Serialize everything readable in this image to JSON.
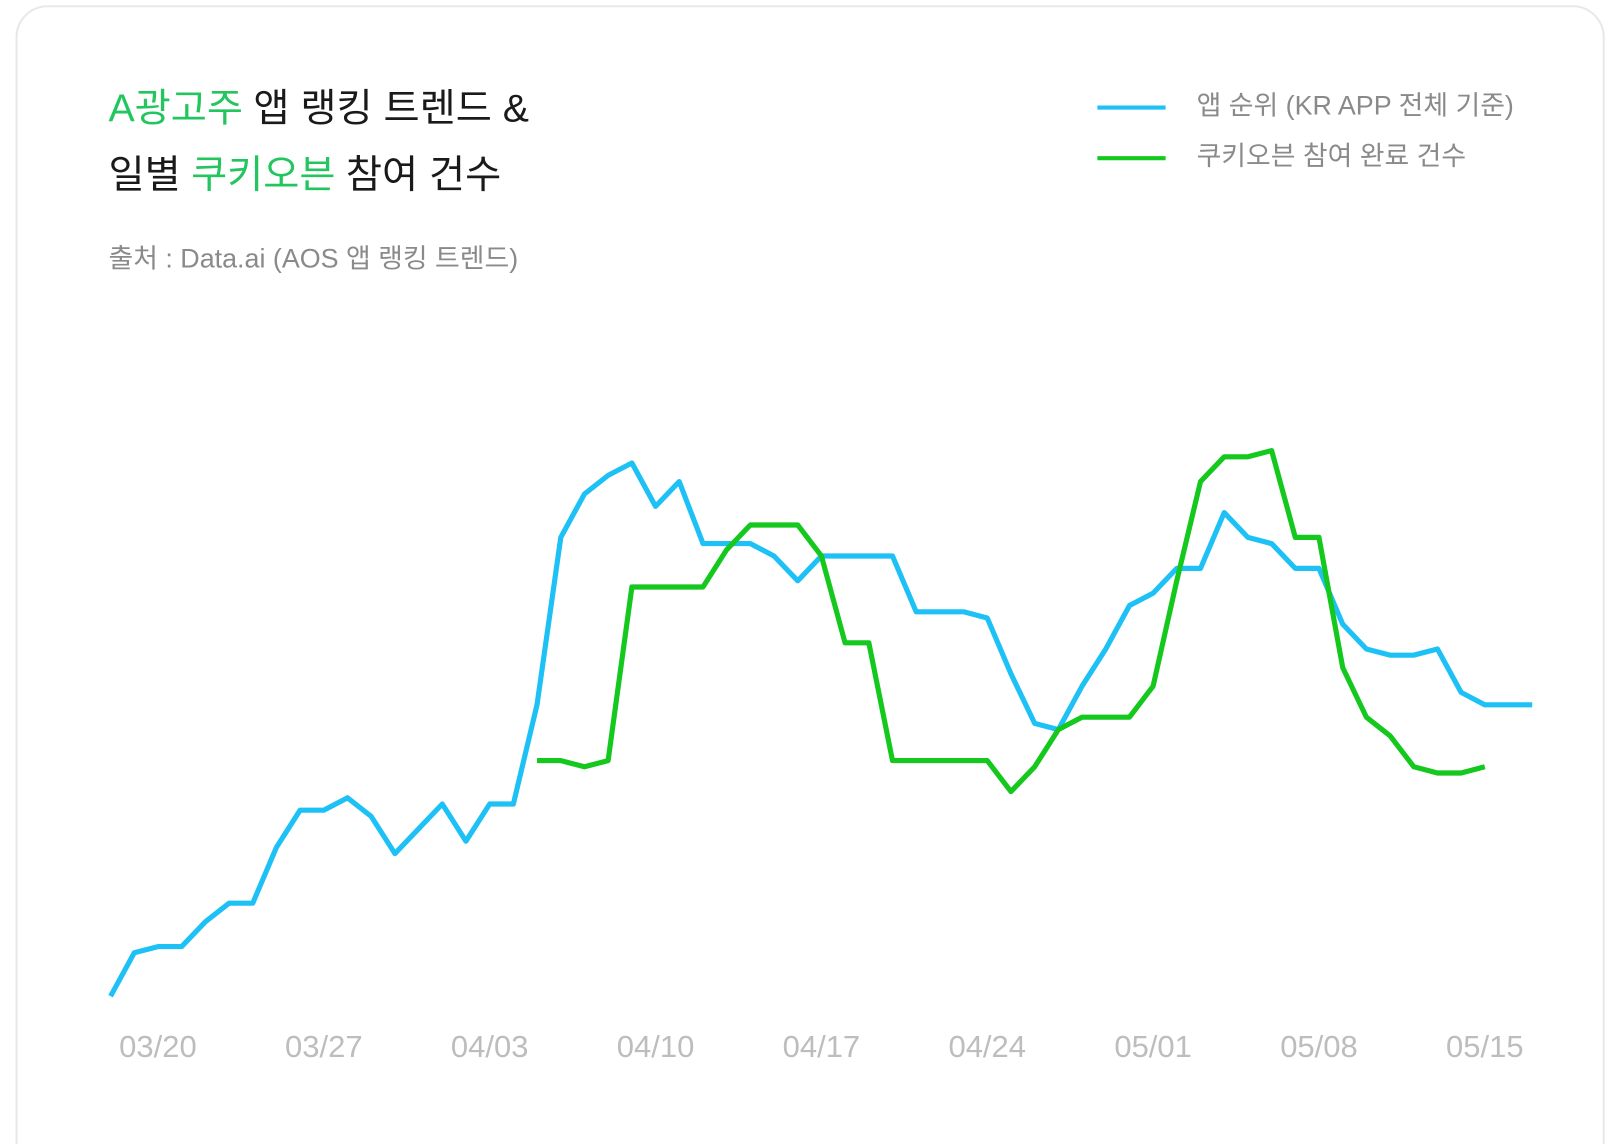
{
  "chart_data": {
    "type": "line",
    "title_lines": [
      [
        {
          "text": "A광고주",
          "highlight": true
        },
        {
          "text": "앱 랭킹 트렌드 &",
          "highlight": false
        }
      ],
      [
        {
          "text": "일별",
          "highlight": false
        },
        {
          "text": "쿠키오븐",
          "highlight": true
        },
        {
          "text": "참여 건수",
          "highlight": false
        }
      ]
    ],
    "highlight_color": "#22c55e",
    "subtitle": "출처 : Data.ai (AOS 앱 랭킹 트렌드)",
    "categories": [
      null,
      null,
      "03/20",
      null,
      null,
      null,
      null,
      null,
      null,
      "03/27",
      null,
      null,
      null,
      null,
      null,
      null,
      "04/03",
      null,
      null,
      null,
      null,
      null,
      null,
      "04/10",
      null,
      null,
      null,
      null,
      null,
      null,
      "04/17",
      null,
      null,
      null,
      null,
      null,
      null,
      "04/24",
      null,
      null,
      null,
      null,
      null,
      null,
      "05/01",
      null,
      null,
      null,
      null,
      null,
      null,
      "05/08",
      null,
      null,
      null,
      null,
      null,
      null,
      "05/15",
      null,
      null
    ],
    "ylim": [
      0,
      100
    ],
    "series": [
      {
        "name": "앱 순위 (KR APP 전체 기준)",
        "color": "#1ec1f5",
        "values": [
          6,
          13,
          14,
          14,
          18,
          21,
          21,
          30,
          36,
          36,
          38,
          35,
          29,
          33,
          37,
          31,
          37,
          37,
          53,
          80,
          87,
          90,
          92,
          85,
          89,
          79,
          79,
          79,
          77,
          73,
          77,
          77,
          77,
          77,
          68,
          68,
          68,
          67,
          58,
          50,
          49,
          56,
          62,
          69,
          71,
          75,
          75,
          84,
          80,
          79,
          75,
          75,
          66,
          62,
          61,
          61,
          62,
          55,
          53,
          53,
          53
        ]
      },
      {
        "name": "쿠키오븐 참여 완료 건수",
        "color": "#14c81e",
        "values": [
          null,
          null,
          null,
          null,
          null,
          null,
          null,
          null,
          null,
          null,
          null,
          null,
          null,
          null,
          null,
          null,
          null,
          null,
          44,
          44,
          43,
          44,
          72,
          72,
          72,
          72,
          78,
          82,
          82,
          82,
          77,
          63,
          63,
          44,
          44,
          44,
          44,
          44,
          39,
          43,
          49,
          51,
          51,
          51,
          56,
          73,
          89,
          93,
          93,
          94,
          80,
          80,
          59,
          51,
          48,
          43,
          42,
          42,
          43,
          null,
          null
        ]
      }
    ]
  }
}
